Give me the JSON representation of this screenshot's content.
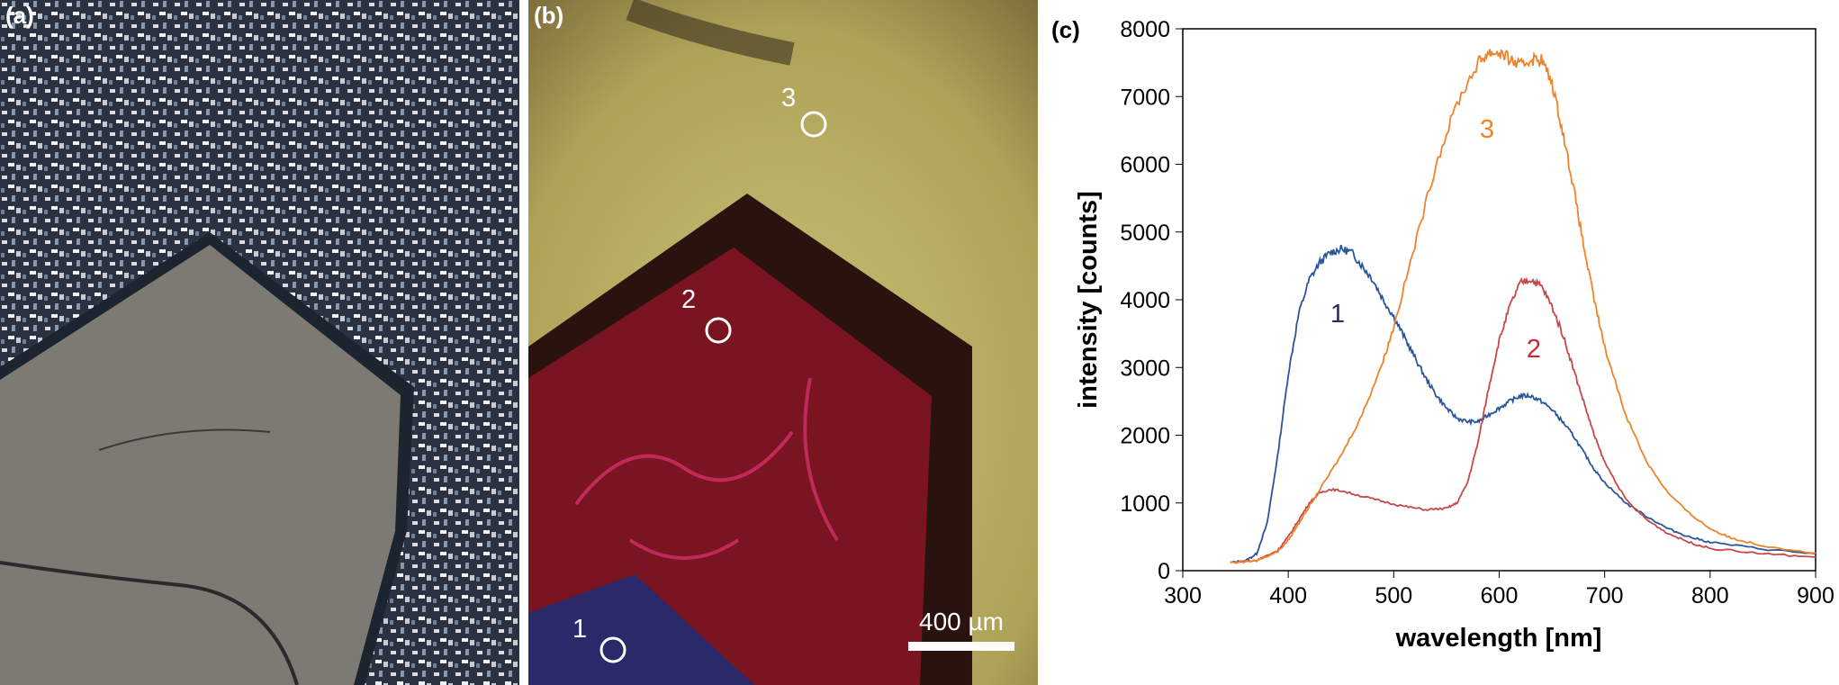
{
  "panels": {
    "a": {
      "label": "(a)"
    },
    "b": {
      "label": "(b)",
      "scale_bar": "400 µm",
      "spots": [
        "1",
        "2",
        "3"
      ]
    },
    "c": {
      "label": "(c)"
    }
  },
  "chart_data": {
    "type": "line",
    "xlabel": "wavelength [nm]",
    "ylabel": "intensity [counts]",
    "xlim": [
      300,
      900
    ],
    "ylim": [
      0,
      8000
    ],
    "xticks": [
      300,
      400,
      500,
      600,
      700,
      800,
      900
    ],
    "yticks": [
      0,
      1000,
      2000,
      3000,
      4000,
      5000,
      6000,
      7000,
      8000
    ],
    "grid": false,
    "series": [
      {
        "name": "1",
        "color": "#2a5599",
        "x": [
          345,
          360,
          370,
          380,
          390,
          400,
          410,
          420,
          430,
          440,
          450,
          460,
          470,
          480,
          490,
          500,
          510,
          520,
          530,
          540,
          550,
          560,
          570,
          580,
          590,
          600,
          610,
          620,
          630,
          640,
          650,
          660,
          670,
          680,
          690,
          700,
          720,
          740,
          760,
          780,
          800,
          850,
          900
        ],
        "y": [
          120,
          150,
          250,
          700,
          1700,
          2900,
          3800,
          4300,
          4550,
          4700,
          4750,
          4700,
          4500,
          4300,
          4000,
          3750,
          3450,
          3150,
          2850,
          2600,
          2400,
          2250,
          2200,
          2200,
          2300,
          2400,
          2500,
          2580,
          2580,
          2500,
          2380,
          2200,
          2000,
          1750,
          1500,
          1300,
          1000,
          800,
          620,
          500,
          420,
          320,
          250
        ]
      },
      {
        "name": "2",
        "color": "#c8474a",
        "x": [
          345,
          370,
          390,
          400,
          410,
          420,
          430,
          440,
          450,
          470,
          490,
          510,
          530,
          550,
          560,
          570,
          580,
          590,
          600,
          610,
          620,
          630,
          640,
          650,
          660,
          670,
          680,
          690,
          700,
          720,
          740,
          760,
          780,
          800,
          850,
          900
        ],
        "y": [
          120,
          150,
          300,
          500,
          750,
          1000,
          1150,
          1200,
          1180,
          1100,
          1020,
          950,
          900,
          920,
          1000,
          1300,
          1900,
          2700,
          3400,
          3900,
          4250,
          4300,
          4200,
          3900,
          3500,
          3000,
          2500,
          2000,
          1600,
          1050,
          750,
          550,
          420,
          330,
          250,
          200
        ]
      },
      {
        "name": "3",
        "color": "#f0822a",
        "x": [
          345,
          370,
          390,
          400,
          410,
          420,
          430,
          450,
          470,
          490,
          500,
          520,
          540,
          560,
          580,
          590,
          600,
          610,
          620,
          630,
          640,
          650,
          660,
          670,
          680,
          690,
          700,
          720,
          740,
          760,
          780,
          800,
          820,
          850,
          900
        ],
        "y": [
          120,
          150,
          280,
          450,
          700,
          950,
          1200,
          1700,
          2300,
          3100,
          3600,
          4800,
          6000,
          6900,
          7500,
          7650,
          7650,
          7550,
          7450,
          7550,
          7550,
          7200,
          6500,
          5700,
          4800,
          4000,
          3300,
          2300,
          1600,
          1150,
          850,
          620,
          480,
          370,
          260
        ]
      }
    ],
    "annotations": [
      "1",
      "2",
      "3"
    ]
  }
}
